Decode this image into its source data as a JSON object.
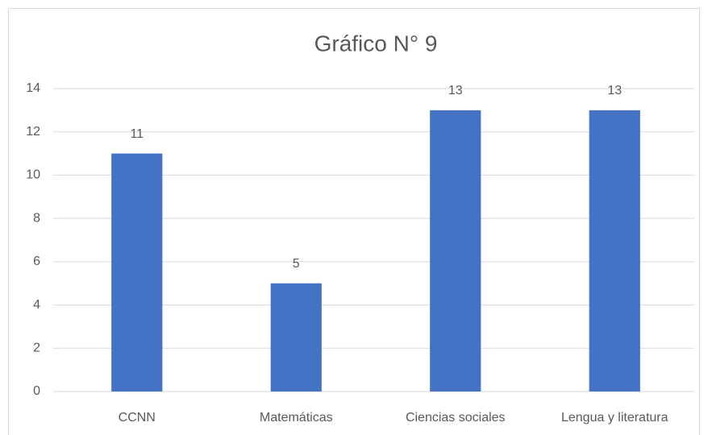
{
  "chart_data": {
    "type": "bar",
    "title": "Gráfico N° 9",
    "categories": [
      "CCNN",
      "Matemáticas",
      "Ciencias sociales",
      "Lengua y literatura"
    ],
    "values": [
      11,
      5,
      13,
      13
    ],
    "color": "#4472c4",
    "ylim": [
      0,
      14
    ],
    "yticks": [
      0,
      2,
      4,
      6,
      8,
      10,
      12,
      14
    ],
    "grid": true
  }
}
